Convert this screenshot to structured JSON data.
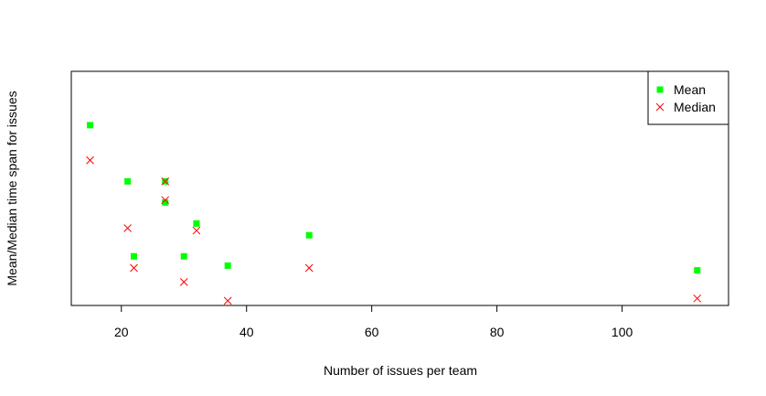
{
  "chart_data": {
    "type": "scatter",
    "title": "",
    "xlabel": "Number of issues per team",
    "ylabel": "Mean/Median time span for issues",
    "xlim": [
      12,
      117
    ],
    "ylim": [
      0,
      100
    ],
    "x_ticks": [
      20,
      40,
      60,
      80,
      100
    ],
    "y_ticks_shown": false,
    "grid": false,
    "legend_position": "top-right",
    "series": [
      {
        "name": "Mean",
        "marker": "filled-square",
        "color": "#00ff00",
        "points": [
          {
            "x": 15,
            "y": 77
          },
          {
            "x": 21,
            "y": 53
          },
          {
            "x": 22,
            "y": 21
          },
          {
            "x": 27,
            "y": 53
          },
          {
            "x": 27,
            "y": 44
          },
          {
            "x": 30,
            "y": 21
          },
          {
            "x": 32,
            "y": 35
          },
          {
            "x": 37,
            "y": 17
          },
          {
            "x": 50,
            "y": 30
          },
          {
            "x": 112,
            "y": 15
          }
        ]
      },
      {
        "name": "Median",
        "marker": "x-cross",
        "color": "#ff0000",
        "points": [
          {
            "x": 15,
            "y": 62
          },
          {
            "x": 21,
            "y": 33
          },
          {
            "x": 22,
            "y": 16
          },
          {
            "x": 27,
            "y": 53
          },
          {
            "x": 27,
            "y": 45
          },
          {
            "x": 30,
            "y": 10
          },
          {
            "x": 32,
            "y": 32
          },
          {
            "x": 37,
            "y": 2
          },
          {
            "x": 50,
            "y": 16
          },
          {
            "x": 112,
            "y": 3
          }
        ]
      }
    ]
  }
}
